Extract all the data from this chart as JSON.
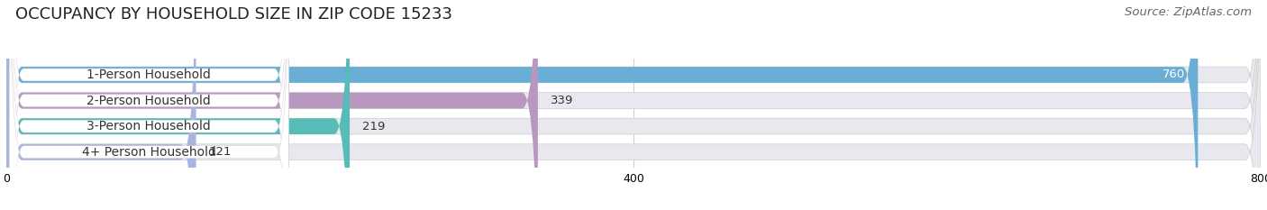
{
  "title": "OCCUPANCY BY HOUSEHOLD SIZE IN ZIP CODE 15233",
  "source": "Source: ZipAtlas.com",
  "categories": [
    "1-Person Household",
    "2-Person Household",
    "3-Person Household",
    "4+ Person Household"
  ],
  "values": [
    760,
    339,
    219,
    121
  ],
  "bar_colors": [
    "#6aaed6",
    "#b998c0",
    "#57bbb8",
    "#aab4e0"
  ],
  "bar_bg_color": "#e8e8ee",
  "label_bg_color": "#ffffff",
  "xlim": [
    0,
    800
  ],
  "xticks": [
    0,
    400,
    800
  ],
  "title_fontsize": 13,
  "source_fontsize": 9.5,
  "label_fontsize": 10,
  "value_fontsize": 9.5,
  "bar_height": 0.62,
  "background_color": "#ffffff",
  "grid_color": "#d0d0d8"
}
